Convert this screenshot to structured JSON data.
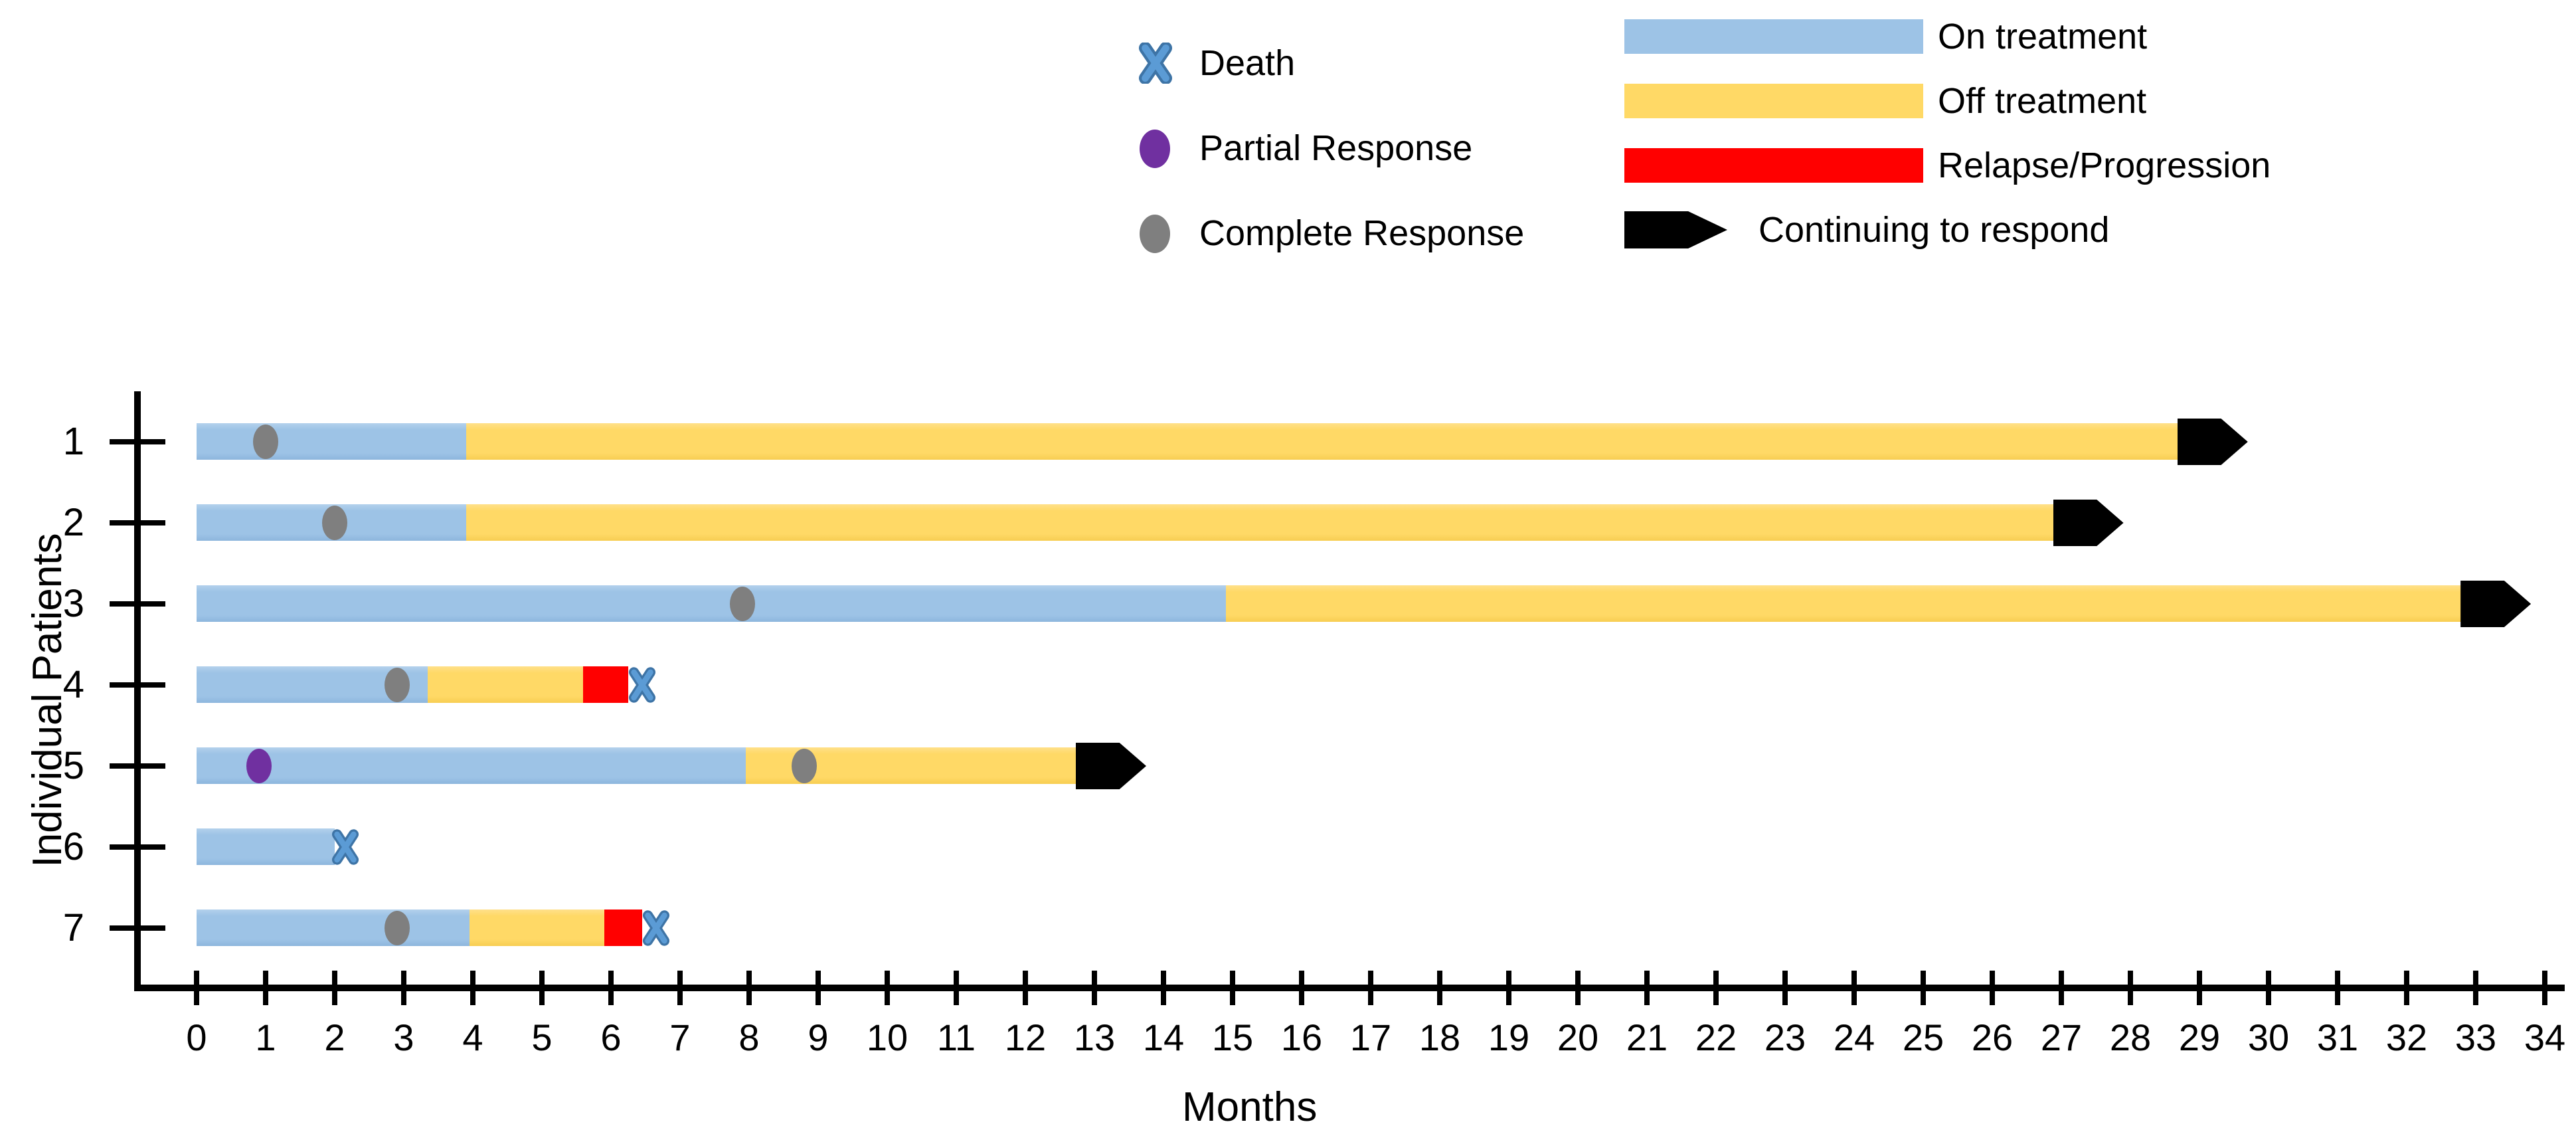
{
  "legend_markers": {
    "items": [
      {
        "id": "death",
        "label": "Death"
      },
      {
        "id": "partial-response",
        "label": "Partial Response"
      },
      {
        "id": "complete-response",
        "label": "Complete Response"
      }
    ]
  },
  "legend_bars": {
    "items": [
      {
        "id": "on-treatment",
        "label": "On treatment",
        "color": "#9DC3E6"
      },
      {
        "id": "off-treatment",
        "label": "Off treatment",
        "color": "#FFD966"
      },
      {
        "id": "relapse-progression",
        "label": "Relapse/Progression",
        "color": "#FF0000"
      },
      {
        "id": "continuing-to-respond",
        "label": "Continuing to respond",
        "color": "#000000"
      }
    ]
  },
  "chart_data": {
    "type": "bar",
    "subtype": "swimmer_plot_horizontal_stacked",
    "title": "",
    "xlabel": "Months",
    "ylabel": "Individual Patients",
    "xlim": [
      0,
      34
    ],
    "x_ticks": [
      0,
      1,
      2,
      3,
      4,
      5,
      6,
      7,
      8,
      9,
      10,
      11,
      12,
      13,
      14,
      15,
      16,
      17,
      18,
      19,
      20,
      21,
      22,
      23,
      24,
      25,
      26,
      27,
      28,
      29,
      30,
      31,
      32,
      33,
      34
    ],
    "categories": [
      "1",
      "2",
      "3",
      "4",
      "5",
      "6",
      "7"
    ],
    "grid": false,
    "legend_position": "top",
    "colors": {
      "on": "#9DC3E6",
      "off": "#FFD966",
      "relapse": "#FF0000",
      "arrow": "#000000",
      "death": "#5B9BD5",
      "death_outline": "#3E74A6",
      "partial": "#7030A0",
      "complete": "#7F7F7F"
    },
    "patients": [
      {
        "id": "1",
        "segments": [
          {
            "type": "on",
            "start": 0,
            "end": 3.9
          },
          {
            "type": "off",
            "start": 3.9,
            "end": 28.7
          }
        ],
        "continuing_to_respond": true,
        "markers": [
          {
            "type": "complete_response",
            "month": 1.0
          }
        ]
      },
      {
        "id": "2",
        "segments": [
          {
            "type": "on",
            "start": 0,
            "end": 3.9
          },
          {
            "type": "off",
            "start": 3.9,
            "end": 26.9
          }
        ],
        "continuing_to_respond": true,
        "markers": [
          {
            "type": "complete_response",
            "month": 2.0
          }
        ]
      },
      {
        "id": "3",
        "segments": [
          {
            "type": "on",
            "start": 0,
            "end": 14.9
          },
          {
            "type": "off",
            "start": 14.9,
            "end": 32.8
          }
        ],
        "continuing_to_respond": true,
        "markers": [
          {
            "type": "complete_response",
            "month": 7.9
          }
        ]
      },
      {
        "id": "4",
        "segments": [
          {
            "type": "on",
            "start": 0,
            "end": 3.35
          },
          {
            "type": "off",
            "start": 3.35,
            "end": 5.6
          },
          {
            "type": "relapse",
            "start": 5.6,
            "end": 6.25
          }
        ],
        "continuing_to_respond": false,
        "markers": [
          {
            "type": "complete_response",
            "month": 2.9
          },
          {
            "type": "death",
            "month": 6.45
          }
        ]
      },
      {
        "id": "5",
        "segments": [
          {
            "type": "on",
            "start": 0,
            "end": 7.95
          },
          {
            "type": "off",
            "start": 7.95,
            "end": 12.75
          }
        ],
        "continuing_to_respond": true,
        "markers": [
          {
            "type": "partial_response",
            "month": 0.9
          },
          {
            "type": "complete_response",
            "month": 8.8
          }
        ]
      },
      {
        "id": "6",
        "segments": [
          {
            "type": "on",
            "start": 0,
            "end": 2.0
          }
        ],
        "continuing_to_respond": false,
        "markers": [
          {
            "type": "death",
            "month": 2.15
          }
        ]
      },
      {
        "id": "7",
        "segments": [
          {
            "type": "on",
            "start": 0,
            "end": 3.95
          },
          {
            "type": "off",
            "start": 3.95,
            "end": 5.9
          },
          {
            "type": "relapse",
            "start": 5.9,
            "end": 6.45
          }
        ],
        "continuing_to_respond": false,
        "markers": [
          {
            "type": "complete_response",
            "month": 2.9
          },
          {
            "type": "death",
            "month": 6.65
          }
        ]
      }
    ]
  }
}
